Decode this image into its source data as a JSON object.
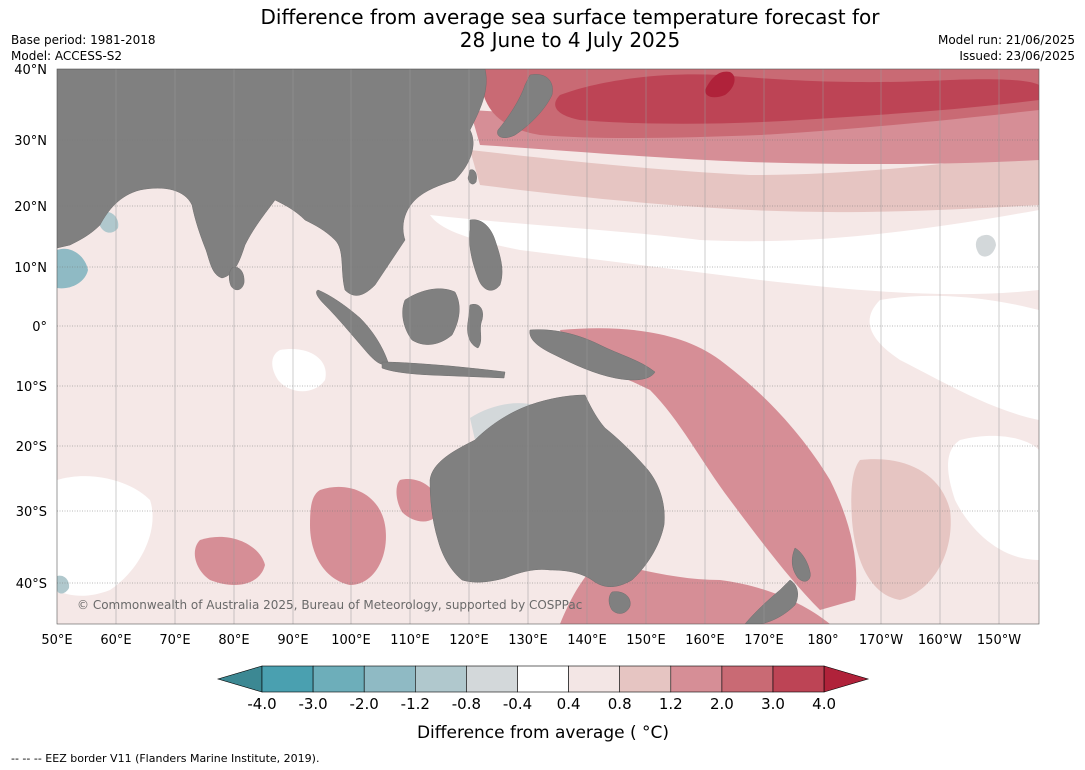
{
  "title_line1": "Difference from average sea surface temperature forecast for",
  "title_line2": "28 June to 4 July 2025",
  "meta_left": [
    "Base period: 1981-2018",
    "Model: ACCESS-S2"
  ],
  "meta_right": [
    "Model run: 21/06/2025",
    "Issued: 23/06/2025"
  ],
  "lat_labels": [
    "40°N",
    "30°N",
    "20°N",
    "10°N",
    "0°",
    "10°S",
    "20°S",
    "30°S",
    "40°S"
  ],
  "lon_labels": [
    "50°E",
    "60°E",
    "70°E",
    "80°E",
    "90°E",
    "100°E",
    "110°E",
    "120°E",
    "130°E",
    "140°E",
    "150°E",
    "160°E",
    "170°E",
    "180°",
    "170°W",
    "160°W",
    "150°W"
  ],
  "copyright": "© Commonwealth of Australia 2025, Bureau of Meteorology, supported by COSPPac",
  "colorbar": {
    "ticks": [
      "-4.0",
      "-3.0",
      "-2.0",
      "-1.2",
      "-0.8",
      "-0.4",
      "0.4",
      "0.8",
      "1.2",
      "2.0",
      "3.0",
      "4.0"
    ],
    "colors": [
      "#3c8893",
      "#4aa0b0",
      "#6daeba",
      "#8fbac4",
      "#b0c8cd",
      "#d3d8da",
      "#ffffff",
      "#f3e6e5",
      "#e6c5c2",
      "#d68e96",
      "#c96a74",
      "#bd4455",
      "#b0223a"
    ],
    "label": "Difference from average ( °C)"
  },
  "colors": {
    "land": "#808080",
    "ocean": "#f5e8e7"
  },
  "footnote": "--  --  -- EEZ border V11 (Flanders Marine Institute, 2019)."
}
